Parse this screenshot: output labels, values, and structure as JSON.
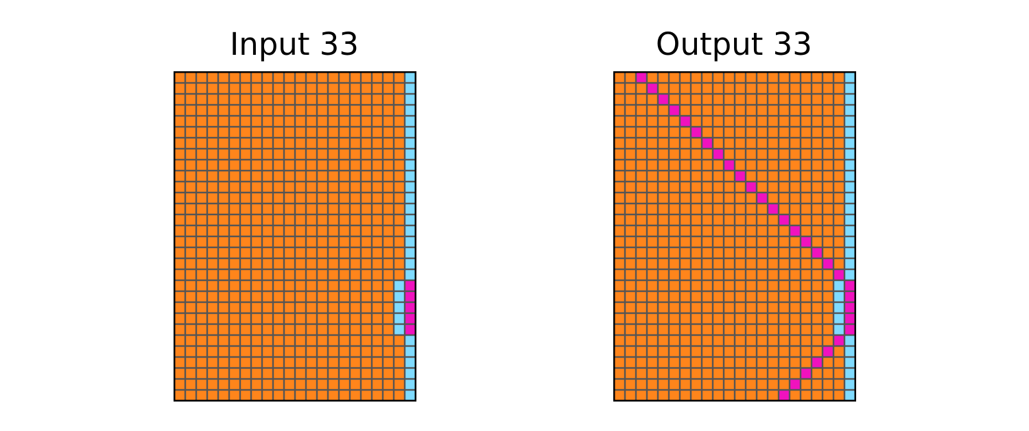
{
  "colors": {
    "background": "#ffffff",
    "grid_line": "#555555",
    "frame": "#000000",
    "orange": "#ff851b",
    "light_blue": "#7fdbff",
    "magenta": "#f012be"
  },
  "legend": [
    "orange",
    "light_blue",
    "magenta"
  ],
  "panels": [
    {
      "title": "Input 33",
      "rows": 30,
      "cols": 22,
      "background_color": "orange",
      "cells": [
        {
          "row": 0,
          "col": 21,
          "color": "light_blue"
        },
        {
          "row": 1,
          "col": 21,
          "color": "light_blue"
        },
        {
          "row": 2,
          "col": 21,
          "color": "light_blue"
        },
        {
          "row": 3,
          "col": 21,
          "color": "light_blue"
        },
        {
          "row": 4,
          "col": 21,
          "color": "light_blue"
        },
        {
          "row": 5,
          "col": 21,
          "color": "light_blue"
        },
        {
          "row": 6,
          "col": 21,
          "color": "light_blue"
        },
        {
          "row": 7,
          "col": 21,
          "color": "light_blue"
        },
        {
          "row": 8,
          "col": 21,
          "color": "light_blue"
        },
        {
          "row": 9,
          "col": 21,
          "color": "light_blue"
        },
        {
          "row": 10,
          "col": 21,
          "color": "light_blue"
        },
        {
          "row": 11,
          "col": 21,
          "color": "light_blue"
        },
        {
          "row": 12,
          "col": 21,
          "color": "light_blue"
        },
        {
          "row": 13,
          "col": 21,
          "color": "light_blue"
        },
        {
          "row": 14,
          "col": 21,
          "color": "light_blue"
        },
        {
          "row": 15,
          "col": 21,
          "color": "light_blue"
        },
        {
          "row": 16,
          "col": 21,
          "color": "light_blue"
        },
        {
          "row": 17,
          "col": 21,
          "color": "light_blue"
        },
        {
          "row": 18,
          "col": 21,
          "color": "light_blue"
        },
        {
          "row": 19,
          "col": 20,
          "color": "light_blue"
        },
        {
          "row": 19,
          "col": 21,
          "color": "magenta"
        },
        {
          "row": 20,
          "col": 20,
          "color": "light_blue"
        },
        {
          "row": 20,
          "col": 21,
          "color": "magenta"
        },
        {
          "row": 21,
          "col": 20,
          "color": "light_blue"
        },
        {
          "row": 21,
          "col": 21,
          "color": "magenta"
        },
        {
          "row": 22,
          "col": 20,
          "color": "light_blue"
        },
        {
          "row": 22,
          "col": 21,
          "color": "magenta"
        },
        {
          "row": 23,
          "col": 20,
          "color": "light_blue"
        },
        {
          "row": 23,
          "col": 21,
          "color": "magenta"
        },
        {
          "row": 24,
          "col": 21,
          "color": "light_blue"
        },
        {
          "row": 25,
          "col": 21,
          "color": "light_blue"
        },
        {
          "row": 26,
          "col": 21,
          "color": "light_blue"
        },
        {
          "row": 27,
          "col": 21,
          "color": "light_blue"
        },
        {
          "row": 28,
          "col": 21,
          "color": "light_blue"
        },
        {
          "row": 29,
          "col": 21,
          "color": "light_blue"
        }
      ]
    },
    {
      "title": "Output 33",
      "rows": 30,
      "cols": 22,
      "background_color": "orange",
      "cells": [
        {
          "row": 0,
          "col": 2,
          "color": "magenta"
        },
        {
          "row": 1,
          "col": 3,
          "color": "magenta"
        },
        {
          "row": 2,
          "col": 4,
          "color": "magenta"
        },
        {
          "row": 3,
          "col": 5,
          "color": "magenta"
        },
        {
          "row": 4,
          "col": 6,
          "color": "magenta"
        },
        {
          "row": 5,
          "col": 7,
          "color": "magenta"
        },
        {
          "row": 6,
          "col": 8,
          "color": "magenta"
        },
        {
          "row": 7,
          "col": 9,
          "color": "magenta"
        },
        {
          "row": 8,
          "col": 10,
          "color": "magenta"
        },
        {
          "row": 9,
          "col": 11,
          "color": "magenta"
        },
        {
          "row": 10,
          "col": 12,
          "color": "magenta"
        },
        {
          "row": 11,
          "col": 13,
          "color": "magenta"
        },
        {
          "row": 12,
          "col": 14,
          "color": "magenta"
        },
        {
          "row": 13,
          "col": 15,
          "color": "magenta"
        },
        {
          "row": 14,
          "col": 16,
          "color": "magenta"
        },
        {
          "row": 15,
          "col": 17,
          "color": "magenta"
        },
        {
          "row": 16,
          "col": 18,
          "color": "magenta"
        },
        {
          "row": 17,
          "col": 19,
          "color": "magenta"
        },
        {
          "row": 18,
          "col": 20,
          "color": "magenta"
        },
        {
          "row": 0,
          "col": 21,
          "color": "light_blue"
        },
        {
          "row": 1,
          "col": 21,
          "color": "light_blue"
        },
        {
          "row": 2,
          "col": 21,
          "color": "light_blue"
        },
        {
          "row": 3,
          "col": 21,
          "color": "light_blue"
        },
        {
          "row": 4,
          "col": 21,
          "color": "light_blue"
        },
        {
          "row": 5,
          "col": 21,
          "color": "light_blue"
        },
        {
          "row": 6,
          "col": 21,
          "color": "light_blue"
        },
        {
          "row": 7,
          "col": 21,
          "color": "light_blue"
        },
        {
          "row": 8,
          "col": 21,
          "color": "light_blue"
        },
        {
          "row": 9,
          "col": 21,
          "color": "light_blue"
        },
        {
          "row": 10,
          "col": 21,
          "color": "light_blue"
        },
        {
          "row": 11,
          "col": 21,
          "color": "light_blue"
        },
        {
          "row": 12,
          "col": 21,
          "color": "light_blue"
        },
        {
          "row": 13,
          "col": 21,
          "color": "light_blue"
        },
        {
          "row": 14,
          "col": 21,
          "color": "light_blue"
        },
        {
          "row": 15,
          "col": 21,
          "color": "light_blue"
        },
        {
          "row": 16,
          "col": 21,
          "color": "light_blue"
        },
        {
          "row": 17,
          "col": 21,
          "color": "light_blue"
        },
        {
          "row": 18,
          "col": 21,
          "color": "light_blue"
        },
        {
          "row": 19,
          "col": 20,
          "color": "light_blue"
        },
        {
          "row": 19,
          "col": 21,
          "color": "magenta"
        },
        {
          "row": 20,
          "col": 20,
          "color": "light_blue"
        },
        {
          "row": 20,
          "col": 21,
          "color": "magenta"
        },
        {
          "row": 21,
          "col": 20,
          "color": "light_blue"
        },
        {
          "row": 21,
          "col": 21,
          "color": "magenta"
        },
        {
          "row": 22,
          "col": 20,
          "color": "light_blue"
        },
        {
          "row": 22,
          "col": 21,
          "color": "magenta"
        },
        {
          "row": 23,
          "col": 20,
          "color": "light_blue"
        },
        {
          "row": 23,
          "col": 21,
          "color": "magenta"
        },
        {
          "row": 24,
          "col": 20,
          "color": "magenta"
        },
        {
          "row": 25,
          "col": 19,
          "color": "magenta"
        },
        {
          "row": 26,
          "col": 18,
          "color": "magenta"
        },
        {
          "row": 27,
          "col": 17,
          "color": "magenta"
        },
        {
          "row": 28,
          "col": 16,
          "color": "magenta"
        },
        {
          "row": 29,
          "col": 15,
          "color": "magenta"
        },
        {
          "row": 24,
          "col": 21,
          "color": "light_blue"
        },
        {
          "row": 25,
          "col": 21,
          "color": "light_blue"
        },
        {
          "row": 26,
          "col": 21,
          "color": "light_blue"
        },
        {
          "row": 27,
          "col": 21,
          "color": "light_blue"
        },
        {
          "row": 28,
          "col": 21,
          "color": "light_blue"
        },
        {
          "row": 29,
          "col": 21,
          "color": "light_blue"
        }
      ]
    }
  ]
}
